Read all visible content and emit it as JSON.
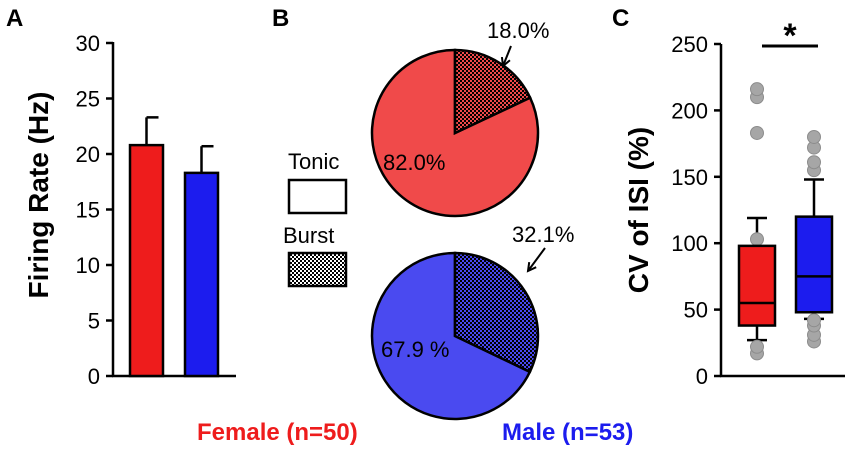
{
  "colors": {
    "female": "#ee1c1c",
    "male": "#1c1cee",
    "female_pie": "#f04a4a",
    "male_pie": "#4a4af0",
    "outlier": "#a6a6a6"
  },
  "panels": {
    "a": "A",
    "b": "B",
    "c": "C"
  },
  "groups": {
    "female": "Female (n=50)",
    "male": "Male (n=53)"
  },
  "chart_data": [
    {
      "type": "bar",
      "panel": "A",
      "ylabel": "Firing Rate (Hz)",
      "ylim": [
        0,
        30
      ],
      "yticks": [
        "0",
        "5",
        "10",
        "15",
        "20",
        "25",
        "30"
      ],
      "categories": [
        "Female",
        "Male"
      ],
      "values": [
        20.8,
        18.3
      ],
      "errors": [
        2.5,
        2.4
      ]
    },
    {
      "type": "pie",
      "panel": "B",
      "legend": [
        "Tonic",
        "Burst"
      ],
      "pies": [
        {
          "group": "Female",
          "tonic": 82.0,
          "burst": 18.0,
          "tonic_label": "82.0%",
          "burst_label": "18.0%"
        },
        {
          "group": "Male",
          "tonic": 67.9,
          "burst": 32.1,
          "tonic_label": "67.9 %",
          "burst_label": "32.1%"
        }
      ]
    },
    {
      "type": "box",
      "panel": "C",
      "ylabel": "CV of ISI (%)",
      "ylim": [
        0,
        250
      ],
      "yticks": [
        "0",
        "50",
        "100",
        "150",
        "200",
        "250"
      ],
      "significance": "*",
      "boxes": [
        {
          "group": "Female",
          "whisker_low": 27,
          "q1": 38,
          "median": 55,
          "q3": 98,
          "whisker_high": 119,
          "outliers": [
            17,
            22,
            78,
            103,
            183,
            210,
            216
          ]
        },
        {
          "group": "Male",
          "whisker_low": 43,
          "q1": 48,
          "median": 75,
          "q3": 120,
          "whisker_high": 148,
          "outliers": [
            26,
            31,
            38,
            42,
            155,
            161,
            172,
            180
          ]
        }
      ]
    }
  ]
}
